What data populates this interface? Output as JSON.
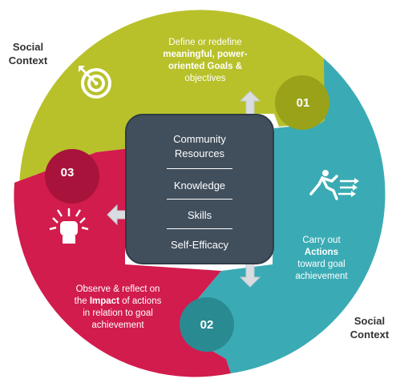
{
  "corner_labels": {
    "top_left": [
      "Social",
      "Context"
    ],
    "bottom_right": [
      "Social",
      "Context"
    ]
  },
  "segments": {
    "goals": {
      "number": "01",
      "color": "#b8c12a",
      "badge_color": "#9aa21a",
      "line1": "Define or redefine",
      "line2_bold": "meaningful, power-",
      "line3_bold": "oriented Goals &",
      "line4": "objectives",
      "icon": "target-icon"
    },
    "actions": {
      "number": "02",
      "color": "#3aabb4",
      "badge_color": "#2a8a92",
      "line1": "Carry out",
      "line2_bold": "Actions",
      "line3": "toward goal",
      "line4": "achievement",
      "icon": "runner-icon"
    },
    "impact": {
      "number": "03",
      "color": "#d11c4d",
      "badge_color": "#a8133c",
      "line1": "Observe & reflect on",
      "line2_pre": "the ",
      "line2_bold": "Impact",
      "line2_post": " of actions",
      "line3": "in relation to goal",
      "line4": "achievement",
      "icon": "fist-icon"
    }
  },
  "center": {
    "items": [
      "Community",
      "Resources",
      "Knowledge",
      "Skills",
      "Self-Efficacy"
    ],
    "color": "#414e5c"
  },
  "arrow_color": "#d9dde2"
}
